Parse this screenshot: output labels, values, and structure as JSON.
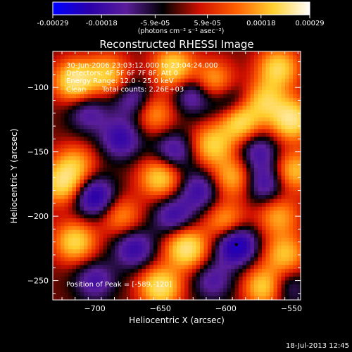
{
  "chart_data": {
    "type": "heatmap",
    "title": "Reconstructed RHESSI Image",
    "xlabel": "Heliocentric X (arcsec)",
    "ylabel": "Heliocentric Y (arcsec)",
    "xlim": [
      -732,
      -543
    ],
    "ylim": [
      -265,
      -72
    ],
    "x_ticks": [
      -700,
      -650,
      -600,
      -550
    ],
    "y_ticks": [
      -100,
      -150,
      -200,
      -250
    ],
    "colorbar": {
      "range": [
        -0.00029,
        0.00029
      ],
      "tick_values": [
        -0.00029,
        -0.00018,
        -5.9e-05,
        5.9e-05,
        0.00018,
        0.00029
      ],
      "tick_labels": [
        "-0.00029",
        "-0.00018",
        "-5.9e-05",
        "5.9e-05",
        "0.00018",
        "0.00029"
      ],
      "unit_label": "(photons cm⁻² s⁻¹ asec⁻²)",
      "colors": [
        "#0000ff",
        "#2a00aa",
        "#5a1e9a",
        "#000000",
        "#d01000",
        "#ff6000",
        "#ffd030",
        "#ffffff"
      ]
    },
    "annotations": {
      "time_range": "30-Jun-2006 23:03:12.000 to 23:04:24.000",
      "detectors": "Detectors: 4F 5F 6F 7F 8F, Att 0",
      "energy_range": "Energy Range: 12.0 - 25.0 keV",
      "method": "Clean",
      "total_counts": "Total counts: 2.26E+03",
      "peak_position": "Position of Peak = [-589,-120]"
    },
    "peak": {
      "x": -589,
      "y": -120
    },
    "blobs": [
      {
        "x": -715,
        "y": -95,
        "v": 0.85
      },
      {
        "x": -690,
        "y": -90,
        "v": 0.6
      },
      {
        "x": -640,
        "y": -85,
        "v": 0.75
      },
      {
        "x": -610,
        "y": -95,
        "v": 0.55
      },
      {
        "x": -560,
        "y": -85,
        "v": 0.7
      },
      {
        "x": -625,
        "y": -105,
        "v": -0.5
      },
      {
        "x": -595,
        "y": -115,
        "v": -0.55
      },
      {
        "x": -670,
        "y": -110,
        "v": -0.45
      },
      {
        "x": -705,
        "y": -120,
        "v": -0.4
      },
      {
        "x": -655,
        "y": -120,
        "v": 0.5
      },
      {
        "x": -590,
        "y": -125,
        "v": 0.95
      },
      {
        "x": -570,
        "y": -110,
        "v": 0.6
      },
      {
        "x": -550,
        "y": -125,
        "v": 0.85
      },
      {
        "x": -610,
        "y": -145,
        "v": 0.65
      },
      {
        "x": -680,
        "y": -140,
        "v": -0.55
      },
      {
        "x": -640,
        "y": -150,
        "v": -0.5
      },
      {
        "x": -575,
        "y": -150,
        "v": -0.45
      },
      {
        "x": -715,
        "y": -160,
        "v": 0.5
      },
      {
        "x": -725,
        "y": -175,
        "v": 0.7
      },
      {
        "x": -700,
        "y": -185,
        "v": -0.7
      },
      {
        "x": -650,
        "y": -170,
        "v": 0.7
      },
      {
        "x": -620,
        "y": -180,
        "v": -0.5
      },
      {
        "x": -595,
        "y": -170,
        "v": 0.55
      },
      {
        "x": -570,
        "y": -175,
        "v": -0.5
      },
      {
        "x": -548,
        "y": -165,
        "v": 0.6
      },
      {
        "x": -680,
        "y": -200,
        "v": 0.45
      },
      {
        "x": -640,
        "y": -200,
        "v": -0.5
      },
      {
        "x": -600,
        "y": -205,
        "v": 0.55
      },
      {
        "x": -560,
        "y": -200,
        "v": 0.5
      },
      {
        "x": -715,
        "y": -220,
        "v": 0.7
      },
      {
        "x": -670,
        "y": -225,
        "v": -0.55
      },
      {
        "x": -630,
        "y": -225,
        "v": 0.85
      },
      {
        "x": -592,
        "y": -222,
        "v": -0.85
      },
      {
        "x": -555,
        "y": -230,
        "v": 0.6
      },
      {
        "x": -700,
        "y": -250,
        "v": -0.45
      },
      {
        "x": -650,
        "y": -255,
        "v": 0.8
      },
      {
        "x": -610,
        "y": -250,
        "v": -0.4
      },
      {
        "x": -570,
        "y": -255,
        "v": 0.75
      },
      {
        "x": -555,
        "y": -255,
        "v": -0.4
      }
    ]
  },
  "footer": {
    "timestamp": "18-Jul-2013 12:45"
  }
}
